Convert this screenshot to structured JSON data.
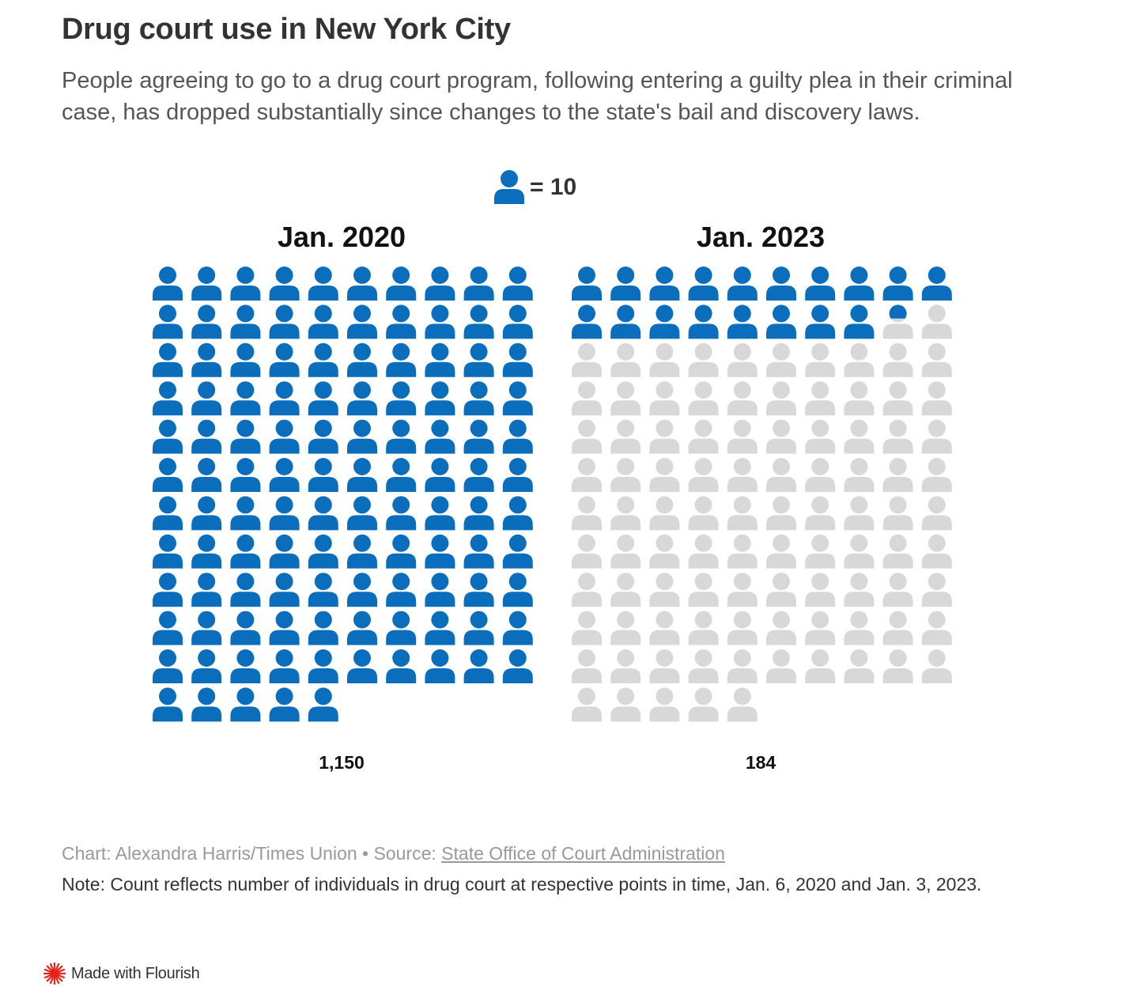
{
  "title": "Drug court use in New York City",
  "subtitle": "People agreeing to go to a drug court program, following entering a guilty plea in their criminal case, has dropped substantially since changes to the state's bail and discovery laws.",
  "legend": {
    "label": "= 10",
    "unit_value": 10
  },
  "colors": {
    "filled": "#0a6ebd",
    "empty": "#d8d8d8",
    "brand": "#e8211a"
  },
  "chart_data": {
    "type": "pictogram",
    "unit": 10,
    "icons_per_row": 10,
    "panels": [
      {
        "label": "Jan. 2020",
        "value": 1150,
        "value_label": "1,150",
        "total_icons": 115,
        "filled_icons": 115
      },
      {
        "label": "Jan. 2023",
        "value": 184,
        "value_label": "184",
        "total_icons": 115,
        "filled_icons": 18.4
      }
    ]
  },
  "footer": {
    "credit_prefix": "Chart: Alexandra Harris/Times Union • Source: ",
    "source_link": "State Office of Court Administration",
    "note": "Note: Count reflects number of individuals in drug court at respective points in time, Jan. 6, 2020 and Jan. 3, 2023."
  },
  "flourish": {
    "label": "Made with Flourish"
  }
}
